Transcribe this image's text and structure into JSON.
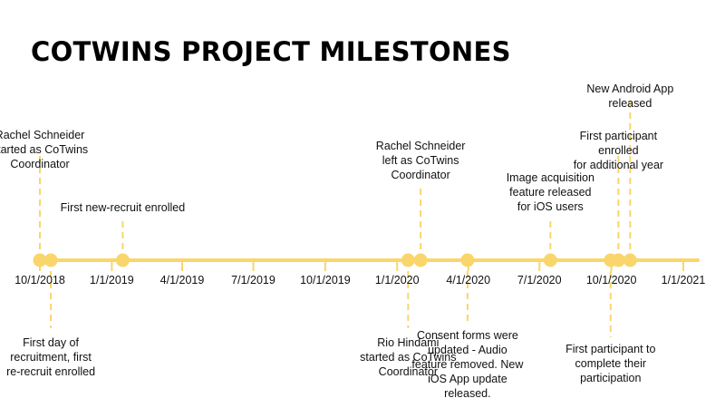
{
  "title": "COTWINS PROJECT MILESTONES",
  "colors": {
    "accent": "#f9d66b",
    "text": "#111111"
  },
  "axis": {
    "ticks": [
      "10/1/2018",
      "1/1/2019",
      "4/1/2019",
      "7/1/2019",
      "10/1/2019",
      "1/1/2020",
      "4/1/2020",
      "7/1/2020",
      "10/1/2020",
      "1/1/2021"
    ]
  },
  "milestones": [
    {
      "date": "10/1/2018",
      "text": "Rachel Schneider\nstarted as CoTwins\nCoordinator"
    },
    {
      "date": "10/15/2018",
      "text": "First day of\nrecruitment, first\nre-recruit enrolled"
    },
    {
      "date": "1/15/2019",
      "text": "First new-recruit enrolled"
    },
    {
      "date": "1/15/2020",
      "text": "Rio Hindami\nstarted as CoTwins\nCoordinator"
    },
    {
      "date": "1/31/2020",
      "text": "Rachel Schneider\nleft as CoTwins\nCoordinator"
    },
    {
      "date": "3/31/2020",
      "text": "Consent forms were\nupdated - Audio\nfeature removed. New\niOS App update\nreleased."
    },
    {
      "date": "7/15/2020",
      "text": "Image acquisition\nfeature released\nfor iOS users"
    },
    {
      "date": "9/30/2020",
      "text": "First participant to\ncomplete their\nparticipation"
    },
    {
      "date": "10/10/2020",
      "text": "First participant enrolled\nfor additional year"
    },
    {
      "date": "10/25/2020",
      "text": "New Android App\nreleased"
    }
  ]
}
